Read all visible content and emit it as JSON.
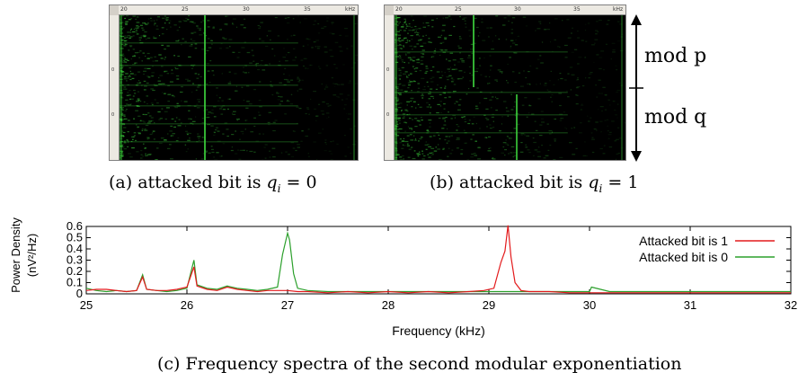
{
  "spectrograms": [
    {
      "id": "a",
      "caption_prefix": "(a) attacked bit is ",
      "caption_var": "q",
      "caption_sub": "i",
      "caption_suffix": " = 0",
      "ruler_labels": [
        "20",
        "25",
        "30",
        "35",
        "kHz"
      ],
      "side_labels": [
        "0",
        "0"
      ]
    },
    {
      "id": "b",
      "caption_prefix": "(b) attacked bit is ",
      "caption_var": "q",
      "caption_sub": "i",
      "caption_suffix": " = 1",
      "ruler_labels": [
        "20",
        "25",
        "30",
        "35",
        "kHz"
      ],
      "side_labels": [
        "0",
        "0"
      ]
    }
  ],
  "annotations": {
    "mod_p": "mod p",
    "mod_q": "mod q"
  },
  "chart_data": {
    "type": "line",
    "title": "",
    "xlabel": "Frequency (kHz)",
    "ylabel_line1": "Power Density",
    "ylabel_line2": "(nV²/Hz)",
    "xlim": [
      25,
      32
    ],
    "ylim": [
      0,
      0.6
    ],
    "xticks": [
      "25",
      "26",
      "27",
      "28",
      "29",
      "30",
      "31",
      "32"
    ],
    "yticks": [
      "0",
      "0.1",
      "0.2",
      "0.3",
      "0.4",
      "0.5",
      "0.6"
    ],
    "grid": false,
    "legend_position": "top-right",
    "series": [
      {
        "name": "Attacked bit is 1",
        "color": "#e31a1c",
        "x": [
          25.0,
          25.1,
          25.2,
          25.3,
          25.4,
          25.5,
          25.56,
          25.6,
          25.7,
          25.8,
          25.9,
          26.0,
          26.07,
          26.1,
          26.2,
          26.3,
          26.4,
          26.5,
          26.6,
          26.7,
          26.8,
          26.9,
          27.0,
          27.1,
          27.2,
          27.4,
          27.6,
          27.8,
          28.0,
          28.2,
          28.4,
          28.6,
          28.8,
          28.95,
          29.05,
          29.12,
          29.16,
          29.19,
          29.22,
          29.26,
          29.32,
          29.4,
          29.6,
          29.8,
          30.0,
          30.2,
          30.4,
          30.6,
          30.8,
          31.0,
          31.2,
          31.4,
          31.6,
          31.8,
          32.0
        ],
        "y": [
          0.03,
          0.04,
          0.04,
          0.03,
          0.02,
          0.03,
          0.15,
          0.04,
          0.03,
          0.03,
          0.04,
          0.06,
          0.24,
          0.07,
          0.04,
          0.03,
          0.06,
          0.04,
          0.03,
          0.02,
          0.03,
          0.03,
          0.03,
          0.02,
          0.02,
          0.01,
          0.02,
          0.01,
          0.02,
          0.01,
          0.02,
          0.01,
          0.02,
          0.03,
          0.05,
          0.28,
          0.38,
          0.61,
          0.33,
          0.1,
          0.03,
          0.02,
          0.02,
          0.01,
          0.01,
          0.01,
          0.01,
          0.01,
          0.01,
          0.01,
          0.01,
          0.01,
          0.01,
          0.01,
          0.01
        ]
      },
      {
        "name": "Attacked bit is 0",
        "color": "#2ca02c",
        "x": [
          25.0,
          25.1,
          25.2,
          25.3,
          25.4,
          25.5,
          25.56,
          25.6,
          25.7,
          25.8,
          25.9,
          26.0,
          26.07,
          26.1,
          26.2,
          26.3,
          26.4,
          26.5,
          26.6,
          26.7,
          26.8,
          26.9,
          26.95,
          27.0,
          27.02,
          27.06,
          27.1,
          27.2,
          27.4,
          27.6,
          27.8,
          28.0,
          28.2,
          28.4,
          28.6,
          28.8,
          29.0,
          29.2,
          29.4,
          29.6,
          29.8,
          30.0,
          30.02,
          30.2,
          30.4,
          30.6,
          30.8,
          31.0,
          31.2,
          31.4,
          31.6,
          31.8,
          32.0
        ],
        "y": [
          0.05,
          0.03,
          0.02,
          0.03,
          0.02,
          0.03,
          0.17,
          0.04,
          0.03,
          0.02,
          0.03,
          0.05,
          0.3,
          0.08,
          0.05,
          0.04,
          0.07,
          0.05,
          0.04,
          0.03,
          0.04,
          0.06,
          0.35,
          0.54,
          0.48,
          0.18,
          0.05,
          0.03,
          0.02,
          0.02,
          0.02,
          0.02,
          0.02,
          0.02,
          0.02,
          0.02,
          0.02,
          0.02,
          0.02,
          0.02,
          0.02,
          0.02,
          0.06,
          0.02,
          0.02,
          0.02,
          0.02,
          0.02,
          0.02,
          0.02,
          0.02,
          0.02,
          0.02
        ]
      }
    ],
    "caption": "(c) Frequency spectra of the second modular exponentiation"
  },
  "colors": {
    "spectrogram_background": "#000000",
    "spectrogram_signal": "#3ccf3c"
  }
}
